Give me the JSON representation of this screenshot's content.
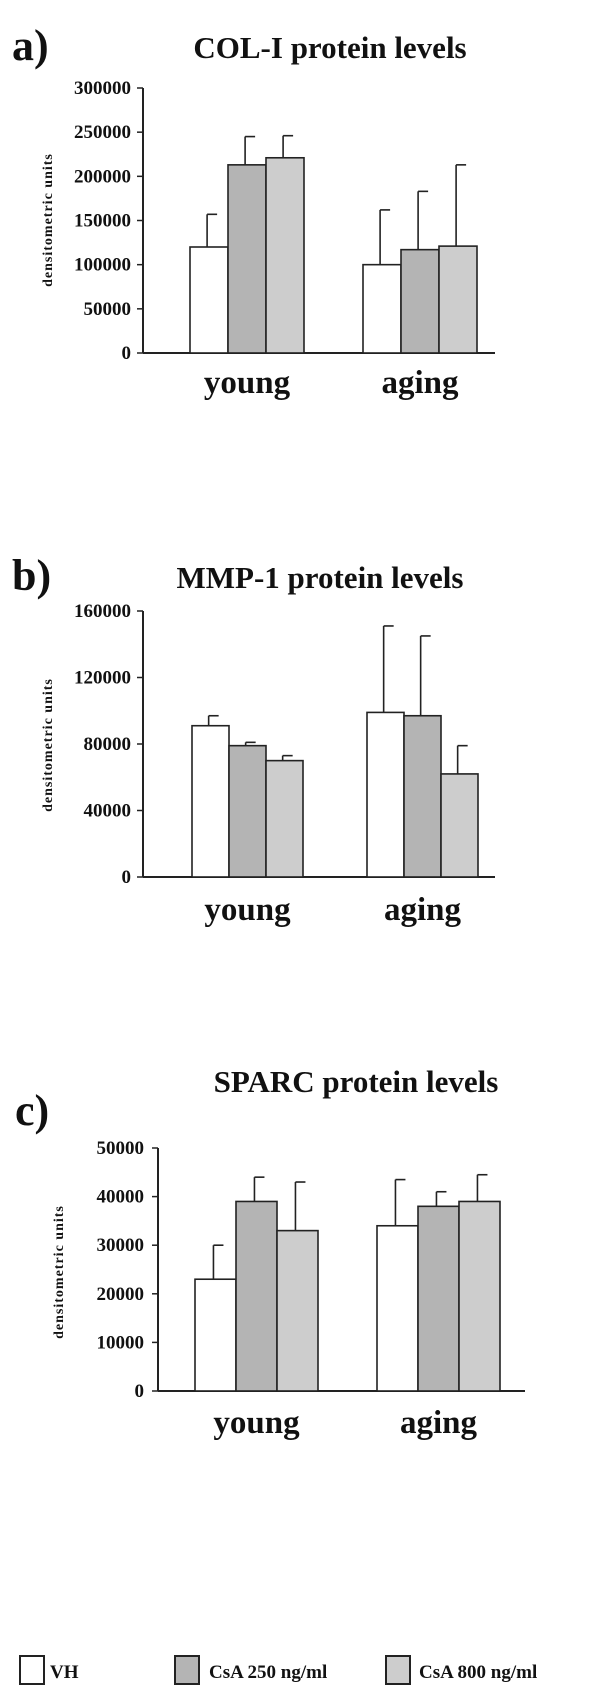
{
  "legend": [
    {
      "key": "VH",
      "label": "VH",
      "color": "#ffffff"
    },
    {
      "key": "CsA250",
      "label": "CsA 250 ng/ml",
      "color": "#b4b4b4"
    },
    {
      "key": "CsA800",
      "label": "CsA 800 ng/ml",
      "color": "#cdcdcd"
    }
  ],
  "chart_data": [
    {
      "type": "bar",
      "panel_label": "a)",
      "title": "COL-I protein levels",
      "ylabel": "densitometric units",
      "xlabel": "",
      "categories": [
        "young",
        "aging"
      ],
      "ylim": [
        0,
        300000
      ],
      "yticks": [
        0,
        50000,
        100000,
        150000,
        200000,
        250000,
        300000
      ],
      "ytick_labels": [
        "0",
        "50000",
        "100000",
        "150000",
        "200000",
        "250000",
        "300000"
      ],
      "series": [
        {
          "name": "VH",
          "values": [
            120000,
            100000
          ],
          "errors": [
            37000,
            62000
          ]
        },
        {
          "name": "CsA 250 ng/ml",
          "values": [
            213000,
            117000
          ],
          "errors": [
            32000,
            66000
          ]
        },
        {
          "name": "CsA 800 ng/ml",
          "values": [
            221000,
            121000
          ],
          "errors": [
            25000,
            92000
          ]
        }
      ]
    },
    {
      "type": "bar",
      "panel_label": "b)",
      "title": "MMP-1 protein levels",
      "ylabel": "densitometric units",
      "xlabel": "",
      "categories": [
        "young",
        "aging"
      ],
      "ylim": [
        0,
        160000
      ],
      "yticks": [
        0,
        40000,
        80000,
        120000,
        160000
      ],
      "ytick_labels": [
        "0",
        "40000",
        "80000",
        "120000",
        "160000"
      ],
      "series": [
        {
          "name": "VH",
          "values": [
            91000,
            99000
          ],
          "errors": [
            6000,
            52000
          ]
        },
        {
          "name": "CsA 250 ng/ml",
          "values": [
            79000,
            97000
          ],
          "errors": [
            2000,
            48000
          ]
        },
        {
          "name": "CsA 800 ng/ml",
          "values": [
            70000,
            62000
          ],
          "errors": [
            3000,
            17000
          ]
        }
      ]
    },
    {
      "type": "bar",
      "panel_label": "c)",
      "title": "SPARC protein levels",
      "ylabel": "densitometric units",
      "xlabel": "",
      "categories": [
        "young",
        "aging"
      ],
      "ylim": [
        0,
        50000
      ],
      "yticks": [
        0,
        10000,
        20000,
        30000,
        40000,
        50000
      ],
      "ytick_labels": [
        "0",
        "10000",
        "20000",
        "30000",
        "40000",
        "50000"
      ],
      "series": [
        {
          "name": "VH",
          "values": [
            23000,
            34000
          ],
          "errors": [
            7000,
            9500
          ]
        },
        {
          "name": "CsA 250 ng/ml",
          "values": [
            39000,
            38000
          ],
          "errors": [
            5000,
            3000
          ]
        },
        {
          "name": "CsA 800 ng/ml",
          "values": [
            33000,
            39000
          ],
          "errors": [
            10000,
            5500
          ]
        }
      ]
    }
  ]
}
